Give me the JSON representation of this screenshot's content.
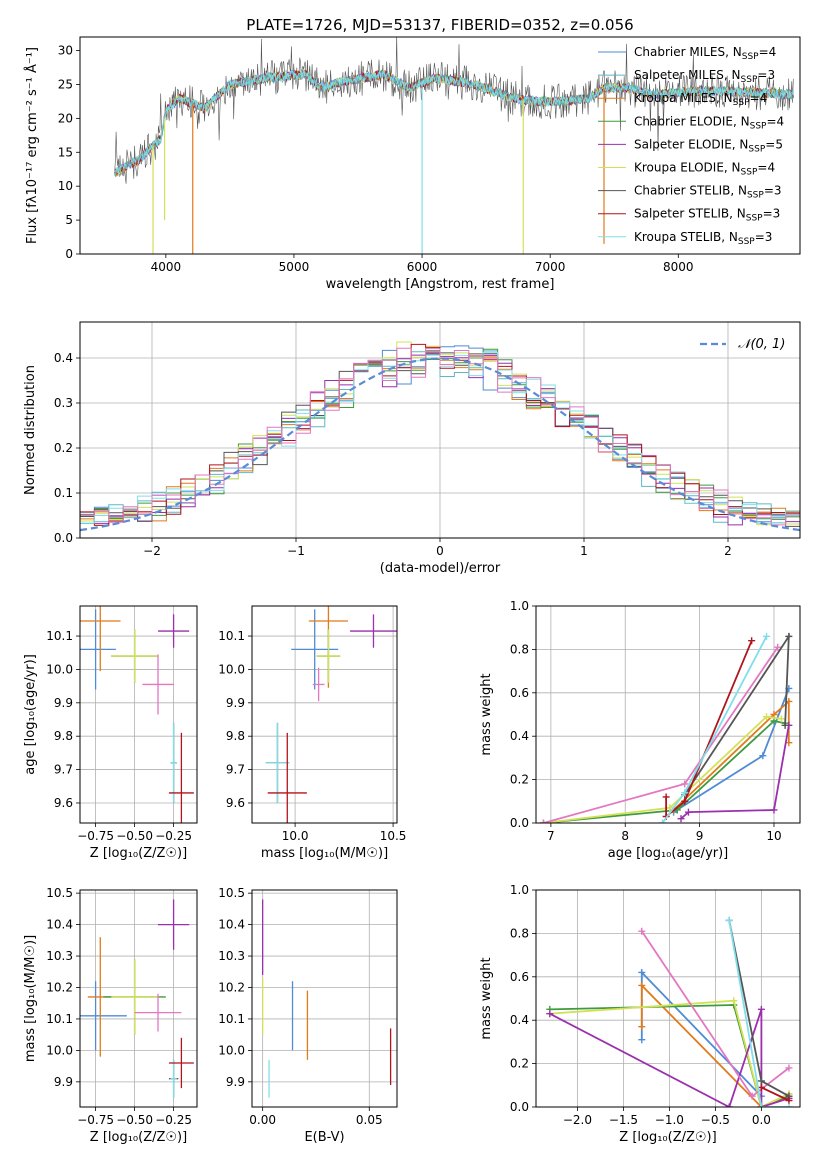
{
  "chart_data": [
    {
      "type": "line",
      "title": "PLATE=1726, MJD=53137, FIBERID=0352, z=0.056",
      "xlabel": "wavelength [Angstrom, rest frame]",
      "ylabel": "Flux [fλ10⁻¹⁷ erg cm⁻² s⁻¹ Å⁻¹]",
      "xlim": [
        3330,
        8950
      ],
      "ylim": [
        0,
        32
      ],
      "xticks": [
        "4000",
        "5000",
        "6000",
        "7000",
        "8000"
      ],
      "yticks": [
        "0",
        "5",
        "10",
        "15",
        "20",
        "25",
        "30"
      ],
      "grid": false,
      "legend_position": "upper-right",
      "legend": [
        {
          "label": "Chabrier MILES, N",
          "sub": "SSP",
          "tail": "=4",
          "color": "#4f8bd6"
        },
        {
          "label": "Salpeter MILES, N",
          "sub": "SSP",
          "tail": "=3",
          "color": "#5cb8c7"
        },
        {
          "label": "Kroupa MILES, N",
          "sub": "SSP",
          "tail": "=4",
          "color": "#e07b1a"
        },
        {
          "label": "Chabrier ELODIE, N",
          "sub": "SSP",
          "tail": "=4",
          "color": "#3f9b3f"
        },
        {
          "label": "Salpeter ELODIE, N",
          "sub": "SSP",
          "tail": "=5",
          "color": "#9b2fae"
        },
        {
          "label": "Kroupa ELODIE, N",
          "sub": "SSP",
          "tail": "=4",
          "color": "#d4e157"
        },
        {
          "label": "Chabrier STELIB, N",
          "sub": "SSP",
          "tail": "=3",
          "color": "#555555"
        },
        {
          "label": "Salpeter STELIB, N",
          "sub": "SSP",
          "tail": "=3",
          "color": "#b0141c"
        },
        {
          "label": "Kroupa STELIB, N",
          "sub": "SSP",
          "tail": "=3",
          "color": "#80deea"
        }
      ],
      "spectrum_profile": [
        {
          "x": 3600,
          "y": 12
        },
        {
          "x": 3700,
          "y": 13
        },
        {
          "x": 3800,
          "y": 14
        },
        {
          "x": 3900,
          "y": 16
        },
        {
          "x": 3960,
          "y": 17
        },
        {
          "x": 4000,
          "y": 21
        },
        {
          "x": 4100,
          "y": 23
        },
        {
          "x": 4300,
          "y": 21.5
        },
        {
          "x": 4500,
          "y": 25
        },
        {
          "x": 4800,
          "y": 26
        },
        {
          "x": 5100,
          "y": 26.5
        },
        {
          "x": 5200,
          "y": 24.5
        },
        {
          "x": 5400,
          "y": 25.5
        },
        {
          "x": 5700,
          "y": 26.5
        },
        {
          "x": 5900,
          "y": 24.5
        },
        {
          "x": 6100,
          "y": 26
        },
        {
          "x": 6400,
          "y": 25
        },
        {
          "x": 6560,
          "y": 24
        },
        {
          "x": 6700,
          "y": 23
        },
        {
          "x": 6900,
          "y": 22.5
        },
        {
          "x": 7100,
          "y": 22.5
        },
        {
          "x": 7300,
          "y": 23
        },
        {
          "x": 7420,
          "y": 24.5
        },
        {
          "x": 7600,
          "y": 24.5
        },
        {
          "x": 7800,
          "y": 23.5
        },
        {
          "x": 8100,
          "y": 24
        },
        {
          "x": 8400,
          "y": 24
        },
        {
          "x": 8900,
          "y": 23.5
        }
      ],
      "spikes": [
        {
          "x": 3900,
          "y": 0
        },
        {
          "x": 3990,
          "y": 5
        },
        {
          "x": 4210,
          "y": 0
        },
        {
          "x": 6000,
          "y": 0
        },
        {
          "x": 6790,
          "y": 0
        },
        {
          "x": 7420,
          "y": 1.5
        }
      ]
    },
    {
      "type": "histogram",
      "xlabel": "(data-model)/error",
      "ylabel": "Normed distribution",
      "xlim": [
        -2.5,
        2.5
      ],
      "ylim": [
        0,
        0.48
      ],
      "xticks": [
        "−2",
        "−1",
        "0",
        "1",
        "2"
      ],
      "yticks": [
        "0.0",
        "0.1",
        "0.2",
        "0.3",
        "0.4"
      ],
      "grid": true,
      "legend_position": "upper-right",
      "legend": [
        {
          "label": "𝒩(0, 1)",
          "color": "#5b8bd6",
          "style": "dashed"
        }
      ],
      "bin_width": 0.1
    },
    {
      "type": "scatter",
      "xlabel": "Z [log₁₀(Z/Z☉)]",
      "ylabel": "age  [log₁₀(age/yr)]",
      "xlim": [
        -0.85,
        -0.1
      ],
      "ylim": [
        9.54,
        10.19
      ],
      "xticks": [
        "−0.75",
        "−0.50",
        "−0.25"
      ],
      "yticks": [
        "9.6",
        "9.7",
        "9.8",
        "9.9",
        "10.0",
        "10.1"
      ],
      "grid": true,
      "points": [
        {
          "x": -0.75,
          "y": 10.06,
          "xerr": 0.13,
          "yerr": 0.12,
          "color": "#4f8bd6"
        },
        {
          "x": -0.72,
          "y": 10.145,
          "xerr": 0.13,
          "yerr": 0.15,
          "color": "#e07b1a"
        },
        {
          "x": -0.5,
          "y": 10.04,
          "xerr": 0.15,
          "yerr": 0.08,
          "color": "#3f9b3f"
        },
        {
          "x": -0.5,
          "y": 10.04,
          "xerr": 0.15,
          "yerr": 0.08,
          "color": "#d4e157"
        },
        {
          "x": -0.25,
          "y": 10.115,
          "xerr": 0.1,
          "yerr": 0.05,
          "color": "#9b2fae"
        },
        {
          "x": -0.35,
          "y": 9.955,
          "xerr": 0.1,
          "yerr": 0.09,
          "color": "#e377c2"
        },
        {
          "x": -0.25,
          "y": 9.72,
          "xerr": 0.02,
          "yerr": 0.12,
          "color": "#555555"
        },
        {
          "x": -0.25,
          "y": 9.72,
          "xerr": 0.02,
          "yerr": 0.12,
          "color": "#80deea"
        },
        {
          "x": -0.2,
          "y": 9.63,
          "xerr": 0.08,
          "yerr": 0.18,
          "color": "#b0141c"
        }
      ]
    },
    {
      "type": "scatter",
      "xlabel": "mass [log₁₀(M/M☉)]",
      "ylabel": "",
      "xlim": [
        9.78,
        10.52
      ],
      "ylim": [
        9.54,
        10.19
      ],
      "xticks": [
        "10.0",
        "10.5"
      ],
      "yticks": [
        "9.6",
        "9.7",
        "9.8",
        "9.9",
        "10.0",
        "10.1"
      ],
      "grid": true,
      "points": [
        {
          "x": 10.1,
          "y": 10.06,
          "xerr": 0.12,
          "yerr": 0.12,
          "color": "#4f8bd6"
        },
        {
          "x": 10.17,
          "y": 10.145,
          "xerr": 0.1,
          "yerr": 0.2,
          "color": "#e07b1a"
        },
        {
          "x": 10.17,
          "y": 10.04,
          "xerr": 0.06,
          "yerr": 0.08,
          "color": "#3f9b3f"
        },
        {
          "x": 10.17,
          "y": 10.04,
          "xerr": 0.06,
          "yerr": 0.08,
          "color": "#d4e157"
        },
        {
          "x": 10.4,
          "y": 10.115,
          "xerr": 0.12,
          "yerr": 0.05,
          "color": "#9b2fae"
        },
        {
          "x": 10.12,
          "y": 9.955,
          "xerr": 0.03,
          "yerr": 0.05,
          "color": "#e377c2"
        },
        {
          "x": 9.91,
          "y": 9.72,
          "xerr": 0.06,
          "yerr": 0.12,
          "color": "#555555"
        },
        {
          "x": 9.91,
          "y": 9.72,
          "xerr": 0.06,
          "yerr": 0.12,
          "color": "#80deea"
        },
        {
          "x": 9.96,
          "y": 9.63,
          "xerr": 0.1,
          "yerr": 0.18,
          "color": "#b0141c"
        }
      ]
    },
    {
      "type": "line",
      "xlabel": "age  [log₁₀(age/yr)]",
      "ylabel": "mass weight",
      "xlim": [
        6.8,
        10.35
      ],
      "ylim": [
        0,
        1
      ],
      "xticks": [
        "7",
        "8",
        "9",
        "10"
      ],
      "yticks": [
        "0.0",
        "0.2",
        "0.4",
        "0.6",
        "0.8",
        "1.0"
      ],
      "grid": true,
      "series": [
        {
          "color": "#4f8bd6",
          "points": [
            [
              8.65,
              0.05
            ],
            [
              9.85,
              0.31
            ],
            [
              10.2,
              0.62
            ]
          ]
        },
        {
          "color": "#e07b1a",
          "points": [
            [
              8.65,
              0.06
            ],
            [
              10.0,
              0.5
            ],
            [
              10.2,
              0.56
            ],
            [
              10.2,
              0.37
            ]
          ]
        },
        {
          "color": "#3f9b3f",
          "points": [
            [
              6.9,
              0.0
            ],
            [
              8.7,
              0.06
            ],
            [
              10.0,
              0.47
            ],
            [
              10.15,
              0.46
            ]
          ]
        },
        {
          "color": "#d4e157",
          "points": [
            [
              6.9,
              0.0
            ],
            [
              8.6,
              0.07
            ],
            [
              9.9,
              0.49
            ],
            [
              10.1,
              0.48
            ]
          ]
        },
        {
          "color": "#9b2fae",
          "points": [
            [
              8.75,
              0.02
            ],
            [
              8.85,
              0.05
            ],
            [
              10.0,
              0.06
            ],
            [
              10.2,
              0.45
            ]
          ]
        },
        {
          "color": "#e377c2",
          "points": [
            [
              6.9,
              0.0
            ],
            [
              8.8,
              0.18
            ],
            [
              10.05,
              0.81
            ]
          ]
        },
        {
          "color": "#555555",
          "points": [
            [
              8.8,
              0.13
            ],
            [
              10.2,
              0.86
            ],
            [
              10.15,
              0.45
            ]
          ]
        },
        {
          "color": "#b0141c",
          "points": [
            [
              8.55,
              0.12
            ],
            [
              8.55,
              0.03
            ],
            [
              8.8,
              0.1
            ],
            [
              9.7,
              0.84
            ]
          ]
        },
        {
          "color": "#80deea",
          "points": [
            [
              8.5,
              0.0
            ],
            [
              8.8,
              0.14
            ],
            [
              9.9,
              0.86
            ]
          ]
        }
      ]
    },
    {
      "type": "scatter",
      "xlabel": "Z [log₁₀(Z/Z☉)]",
      "ylabel": "mass [log₁₀(M/M☉)]",
      "xlim": [
        -0.85,
        -0.1
      ],
      "ylim": [
        9.82,
        10.51
      ],
      "xticks": [
        "−0.75",
        "−0.50",
        "−0.25"
      ],
      "yticks": [
        "9.9",
        "10.0",
        "10.1",
        "10.2",
        "10.3",
        "10.4",
        "10.5"
      ],
      "grid": true,
      "points": [
        {
          "x": -0.75,
          "y": 10.11,
          "xerr": 0.2,
          "yerr": 0.11,
          "color": "#4f8bd6"
        },
        {
          "x": -0.72,
          "y": 10.17,
          "xerr": 0.08,
          "yerr": 0.19,
          "color": "#e07b1a"
        },
        {
          "x": -0.5,
          "y": 10.17,
          "xerr": 0.2,
          "yerr": 0.12,
          "color": "#3f9b3f"
        },
        {
          "x": -0.5,
          "y": 10.17,
          "xerr": 0.15,
          "yerr": 0.12,
          "color": "#d4e157"
        },
        {
          "x": -0.25,
          "y": 10.4,
          "xerr": 0.1,
          "yerr": 0.08,
          "color": "#9b2fae"
        },
        {
          "x": -0.35,
          "y": 10.12,
          "xerr": 0.15,
          "yerr": 0.06,
          "color": "#e377c2"
        },
        {
          "x": -0.25,
          "y": 9.91,
          "xerr": 0.03,
          "yerr": 0.06,
          "color": "#555555"
        },
        {
          "x": -0.25,
          "y": 9.91,
          "xerr": 0.02,
          "yerr": 0.06,
          "color": "#80deea"
        },
        {
          "x": -0.2,
          "y": 9.96,
          "xerr": 0.08,
          "yerr": 0.08,
          "color": "#b0141c"
        }
      ]
    },
    {
      "type": "scatter",
      "xlabel": "E(B-V)",
      "ylabel": "",
      "xlim": [
        -0.005,
        0.063
      ],
      "ylim": [
        9.82,
        10.51
      ],
      "xticks": [
        "0.00",
        "0.05"
      ],
      "yticks": [
        "9.9",
        "10.0",
        "10.1",
        "10.2",
        "10.3",
        "10.4",
        "10.5"
      ],
      "grid": true,
      "points": [
        {
          "x": 0.014,
          "y": 10.11,
          "xerr": 0,
          "yerr": 0.11,
          "color": "#4f8bd6"
        },
        {
          "x": 0.021,
          "y": 10.08,
          "xerr": 0,
          "yerr": 0.11,
          "color": "#e07b1a"
        },
        {
          "x": 0.0,
          "y": 10.36,
          "xerr": 0,
          "yerr": 0.12,
          "color": "#9b2fae"
        },
        {
          "x": 0.0,
          "y": 10.14,
          "xerr": 0,
          "yerr": 0.09,
          "color": "#d4e157"
        },
        {
          "x": 0.003,
          "y": 9.91,
          "xerr": 0,
          "yerr": 0.06,
          "color": "#80deea"
        },
        {
          "x": 0.06,
          "y": 9.98,
          "xerr": 0,
          "yerr": 0.09,
          "color": "#b0141c"
        }
      ]
    },
    {
      "type": "line",
      "xlabel": "Z [log₁₀(Z/Z☉)]",
      "ylabel": "mass weight",
      "xlim": [
        -2.45,
        0.42
      ],
      "ylim": [
        0,
        1
      ],
      "xticks": [
        "−2.0",
        "−1.5",
        "−1.0",
        "−0.5",
        "0.0"
      ],
      "yticks": [
        "0.0",
        "0.2",
        "0.4",
        "0.6",
        "0.8",
        "1.0"
      ],
      "grid": true,
      "series": [
        {
          "color": "#4f8bd6",
          "points": [
            [
              -1.3,
              0.31
            ],
            [
              -1.3,
              0.62
            ],
            [
              0.0,
              0.05
            ]
          ]
        },
        {
          "color": "#e07b1a",
          "points": [
            [
              -1.3,
              0.37
            ],
            [
              -1.3,
              0.56
            ],
            [
              0.0,
              0.0
            ],
            [
              0.3,
              0.06
            ]
          ]
        },
        {
          "color": "#3f9b3f",
          "points": [
            [
              -2.3,
              0.45
            ],
            [
              -0.3,
              0.47
            ],
            [
              0.0,
              0.0
            ],
            [
              0.3,
              0.05
            ]
          ]
        },
        {
          "color": "#d4e157",
          "points": [
            [
              -2.3,
              0.43
            ],
            [
              -0.3,
              0.49
            ],
            [
              0.0,
              0.0
            ],
            [
              0.3,
              0.06
            ]
          ]
        },
        {
          "color": "#9b2fae",
          "points": [
            [
              -2.3,
              0.43
            ],
            [
              -0.35,
              0.0
            ],
            [
              0.0,
              0.45
            ],
            [
              0.0,
              0.0
            ],
            [
              0.3,
              0.04
            ]
          ]
        },
        {
          "color": "#e377c2",
          "points": [
            [
              -1.3,
              0.81
            ],
            [
              -0.1,
              0.05
            ],
            [
              0.3,
              0.18
            ]
          ]
        },
        {
          "color": "#555555",
          "points": [
            [
              -0.35,
              0.86
            ],
            [
              0.0,
              0.12
            ],
            [
              0.3,
              0.05
            ]
          ]
        },
        {
          "color": "#b0141c",
          "points": [
            [
              0.0,
              0.09
            ],
            [
              0.3,
              0.03
            ]
          ]
        },
        {
          "color": "#80deea",
          "points": [
            [
              -0.35,
              0.86
            ],
            [
              0.0,
              0.0
            ],
            [
              0.3,
              0.0
            ]
          ]
        }
      ]
    }
  ]
}
